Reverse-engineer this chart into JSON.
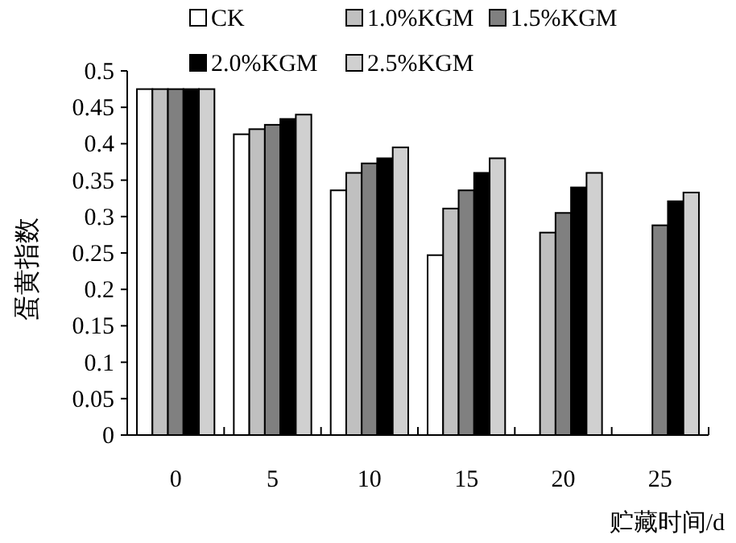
{
  "chart_data": {
    "type": "bar",
    "xlabel": "贮藏时间/d",
    "ylabel": "蛋黄指数",
    "categories": [
      "0",
      "5",
      "10",
      "15",
      "20",
      "25"
    ],
    "series": [
      {
        "name": "CK",
        "color": "#ffffff",
        "values": [
          0.475,
          0.413,
          0.336,
          0.247,
          null,
          null
        ]
      },
      {
        "name": "1.0%KGM",
        "color": "#c0c0c0",
        "values": [
          0.475,
          0.42,
          0.36,
          0.311,
          0.278,
          null
        ]
      },
      {
        "name": "1.5%KGM",
        "color": "#808080",
        "values": [
          0.475,
          0.426,
          0.373,
          0.336,
          0.305,
          0.288
        ]
      },
      {
        "name": "2.0%KGM",
        "color": "#000000",
        "values": [
          0.475,
          0.434,
          0.38,
          0.36,
          0.34,
          0.321
        ]
      },
      {
        "name": "2.5%KGM",
        "color": "#d0d0d0",
        "values": [
          0.475,
          0.44,
          0.395,
          0.38,
          0.36,
          0.333
        ]
      }
    ],
    "ylim": [
      0,
      0.5
    ],
    "yticks": [
      0,
      0.05,
      0.1,
      0.15,
      0.2,
      0.25,
      0.3,
      0.35,
      0.4,
      0.45,
      0.5
    ],
    "grid": false,
    "legend": "top"
  }
}
